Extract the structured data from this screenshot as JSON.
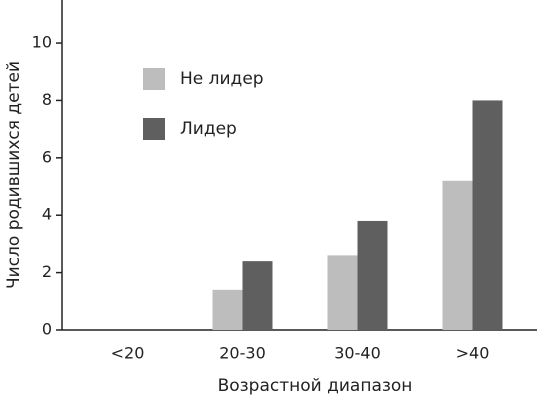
{
  "chart_data": {
    "type": "bar",
    "xlabel": "Возрастной диапазон",
    "ylabel": "Число родившихся детей",
    "categories": [
      "<20",
      "20-30",
      "30-40",
      ">40"
    ],
    "series": [
      {
        "name": "Не лидер",
        "color": "#bdbdbd",
        "values": [
          0,
          1.4,
          2.6,
          5.2
        ]
      },
      {
        "name": "Лидер",
        "color": "#5f5f5f",
        "values": [
          0,
          2.4,
          3.8,
          8.0
        ]
      }
    ],
    "ylim": [
      0,
      11.5
    ],
    "yticks": [
      0,
      2,
      4,
      6,
      8,
      10
    ]
  }
}
